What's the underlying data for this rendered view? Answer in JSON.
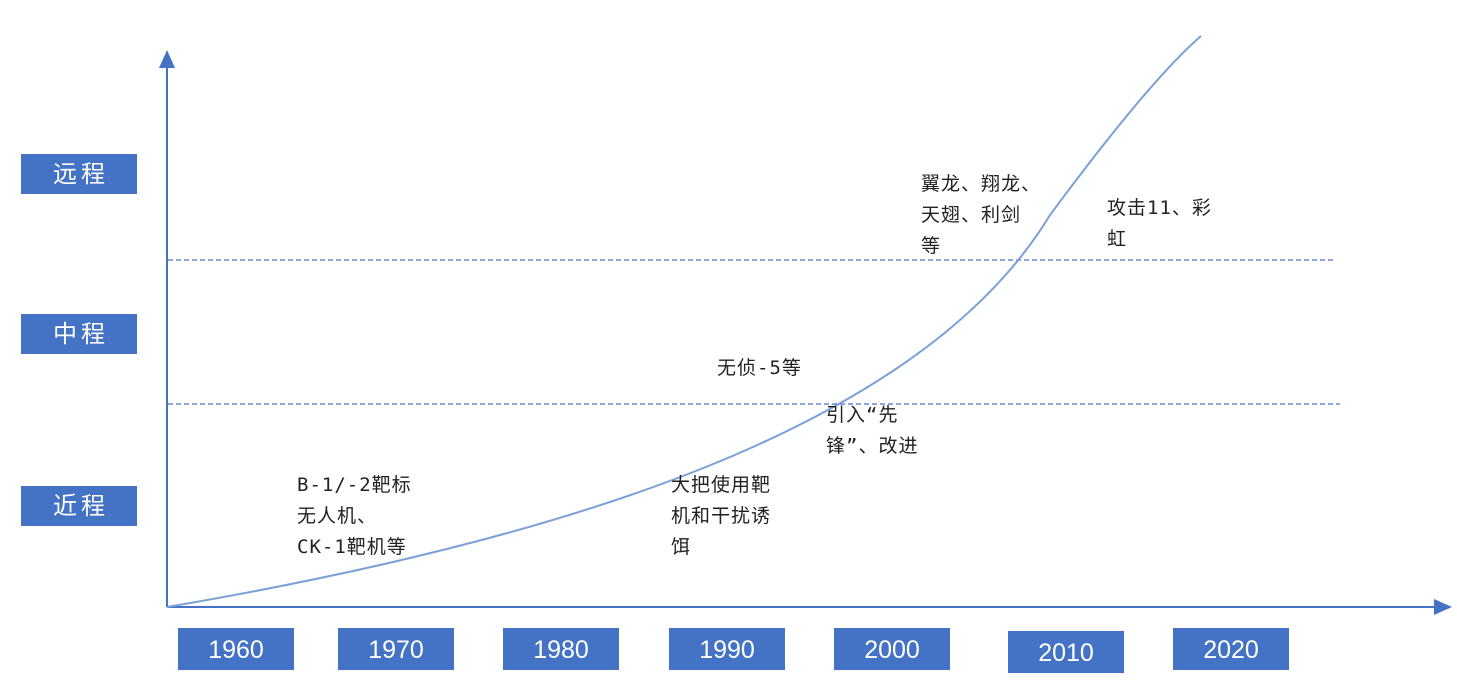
{
  "ranges": [
    {
      "label": "远程"
    },
    {
      "label": "中程"
    },
    {
      "label": "近程"
    }
  ],
  "years": [
    "1960",
    "1970",
    "1980",
    "1990",
    "2000",
    "2010",
    "2020"
  ],
  "annotations": [
    {
      "text": "B-1/-2靶标\n无人机、\nCK-1靶机等"
    },
    {
      "text": "大把使用靶\n机和干扰诱\n饵"
    },
    {
      "text": "无侦-5等"
    },
    {
      "text": "引入“先\n锋”、改进"
    },
    {
      "text": "翼龙、翔龙、\n天翅、利剑\n等"
    },
    {
      "text": "攻击11、彩\n虹"
    }
  ],
  "colors": {
    "box_fill": "#4472c4",
    "axis": "#4472c4",
    "curve": "#7aa0d8",
    "divider": "#4472c4",
    "text": "#222222"
  }
}
